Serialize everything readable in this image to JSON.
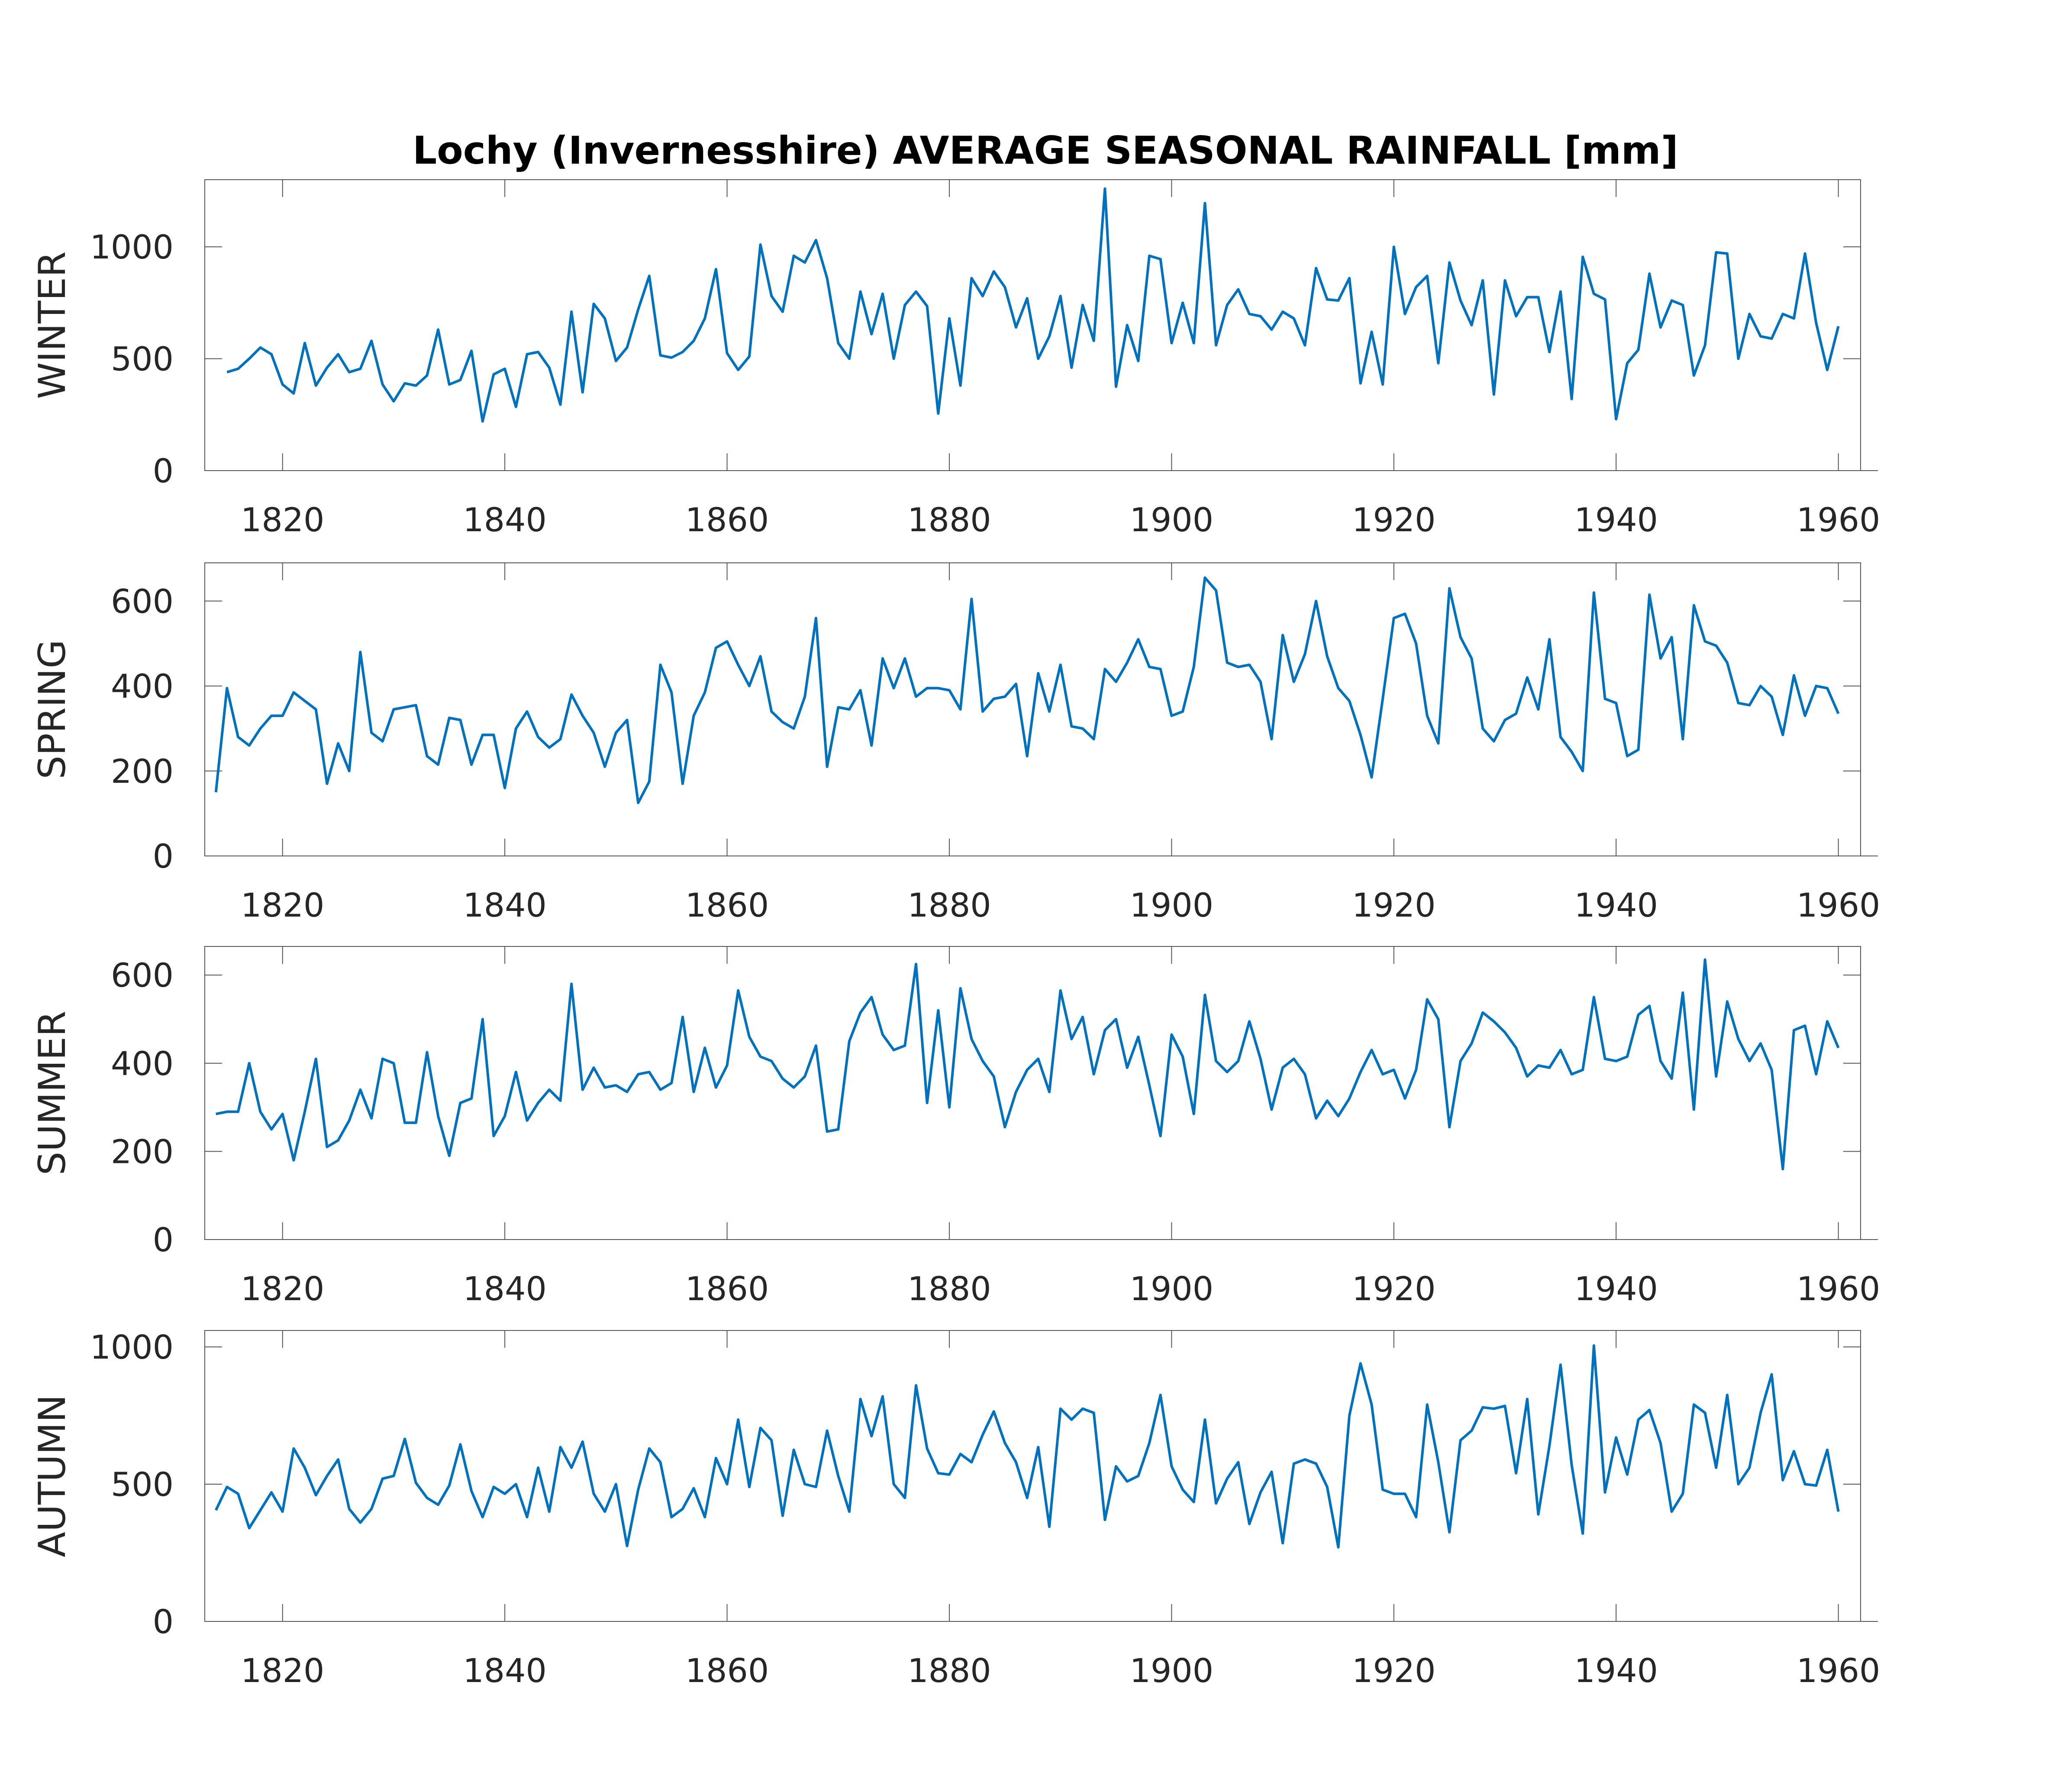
{
  "title": "Lochy (Invernesshire) AVERAGE SEASONAL RAINFALL [mm]",
  "colors": {
    "line": "#0072BD",
    "axis": "#262626",
    "frame": "#555555"
  },
  "chart_data": [
    {
      "type": "line",
      "ylabel": "WINTER",
      "xlim": [
        1813,
        1962
      ],
      "ylim": [
        0,
        1300
      ],
      "xticks": [
        1820,
        1840,
        1860,
        1880,
        1900,
        1920,
        1940,
        1960
      ],
      "yticks": [
        0,
        500,
        1000
      ],
      "grid": false,
      "x": [
        1815,
        1816,
        1817,
        1818,
        1819,
        1820,
        1821,
        1822,
        1823,
        1824,
        1825,
        1826,
        1827,
        1828,
        1829,
        1830,
        1831,
        1832,
        1833,
        1834,
        1835,
        1836,
        1837,
        1838,
        1839,
        1840,
        1841,
        1842,
        1843,
        1844,
        1845,
        1846,
        1847,
        1848,
        1849,
        1850,
        1851,
        1852,
        1853,
        1854,
        1855,
        1856,
        1857,
        1858,
        1859,
        1860,
        1861,
        1862,
        1863,
        1864,
        1865,
        1866,
        1867,
        1868,
        1869,
        1870,
        1871,
        1872,
        1873,
        1874,
        1875,
        1876,
        1877,
        1878,
        1879,
        1880,
        1881,
        1882,
        1883,
        1884,
        1885,
        1886,
        1887,
        1888,
        1889,
        1890,
        1891,
        1892,
        1893,
        1894,
        1895,
        1896,
        1897,
        1898,
        1899,
        1900,
        1901,
        1902,
        1903,
        1904,
        1905,
        1906,
        1907,
        1908,
        1909,
        1910,
        1911,
        1912,
        1913,
        1914,
        1915,
        1916,
        1917,
        1918,
        1919,
        1920,
        1921,
        1922,
        1923,
        1924,
        1925,
        1926,
        1927,
        1928,
        1929,
        1930,
        1931,
        1932,
        1933,
        1934,
        1935,
        1936,
        1937,
        1938,
        1939,
        1940,
        1941,
        1942,
        1943,
        1944,
        1945,
        1946,
        1947,
        1948,
        1949,
        1950,
        1951,
        1952,
        1953,
        1954,
        1955,
        1956,
        1957,
        1958,
        1959,
        1960
      ],
      "values": [
        440,
        455,
        500,
        550,
        520,
        385,
        345,
        570,
        380,
        460,
        520,
        440,
        455,
        580,
        385,
        310,
        390,
        380,
        425,
        630,
        385,
        405,
        535,
        220,
        430,
        455,
        285,
        520,
        530,
        460,
        295,
        710,
        350,
        745,
        680,
        490,
        550,
        720,
        870,
        515,
        505,
        530,
        580,
        680,
        900,
        525,
        450,
        510,
        1010,
        780,
        710,
        960,
        930,
        1030,
        860,
        570,
        500,
        800,
        610,
        790,
        500,
        740,
        800,
        735,
        255,
        680,
        380,
        860,
        780,
        890,
        820,
        640,
        770,
        500,
        600,
        780,
        460,
        740,
        580,
        1260,
        375,
        650,
        490,
        960,
        945,
        570,
        750,
        570,
        1195,
        560,
        740,
        810,
        700,
        690,
        630,
        710,
        680,
        560,
        905,
        765,
        760,
        860,
        390,
        620,
        385,
        1000,
        700,
        820,
        870,
        480,
        930,
        760,
        650,
        850,
        340,
        850,
        690,
        775,
        775,
        530,
        800,
        320,
        955,
        790,
        765,
        230,
        480,
        540,
        880,
        640,
        760,
        740,
        425,
        560,
        975,
        970,
        500,
        700,
        600,
        590,
        700,
        680,
        970,
        660,
        450,
        645
      ]
    },
    {
      "type": "line",
      "ylabel": "SPRING",
      "xlim": [
        1813,
        1962
      ],
      "ylim": [
        0,
        690
      ],
      "xticks": [
        1820,
        1840,
        1860,
        1880,
        1900,
        1920,
        1940,
        1960
      ],
      "yticks": [
        0,
        200,
        400,
        600
      ],
      "grid": false,
      "x": [
        1814,
        1815,
        1816,
        1817,
        1818,
        1819,
        1820,
        1821,
        1822,
        1823,
        1824,
        1825,
        1826,
        1827,
        1828,
        1829,
        1830,
        1831,
        1832,
        1833,
        1834,
        1835,
        1836,
        1837,
        1838,
        1839,
        1840,
        1841,
        1842,
        1843,
        1844,
        1845,
        1846,
        1847,
        1848,
        1849,
        1850,
        1851,
        1852,
        1853,
        1854,
        1855,
        1856,
        1857,
        1858,
        1859,
        1860,
        1861,
        1862,
        1863,
        1864,
        1865,
        1866,
        1867,
        1868,
        1869,
        1870,
        1871,
        1872,
        1873,
        1874,
        1875,
        1876,
        1877,
        1878,
        1879,
        1880,
        1881,
        1882,
        1883,
        1884,
        1885,
        1886,
        1887,
        1888,
        1889,
        1890,
        1891,
        1892,
        1893,
        1894,
        1895,
        1896,
        1897,
        1898,
        1899,
        1900,
        1901,
        1902,
        1903,
        1904,
        1905,
        1906,
        1907,
        1908,
        1909,
        1910,
        1911,
        1912,
        1913,
        1914,
        1915,
        1916,
        1917,
        1918,
        1919,
        1920,
        1921,
        1922,
        1923,
        1924,
        1925,
        1926,
        1927,
        1928,
        1929,
        1930,
        1931,
        1932,
        1933,
        1934,
        1935,
        1936,
        1937,
        1938,
        1939,
        1940,
        1941,
        1942,
        1943,
        1944,
        1945,
        1946,
        1947,
        1948,
        1949,
        1950,
        1951,
        1952,
        1953,
        1954,
        1955,
        1956,
        1957,
        1958,
        1959,
        1960
      ],
      "values": [
        150,
        395,
        280,
        260,
        300,
        330,
        330,
        385,
        365,
        345,
        170,
        265,
        200,
        480,
        290,
        270,
        345,
        350,
        355,
        235,
        215,
        325,
        320,
        215,
        285,
        285,
        160,
        300,
        340,
        280,
        255,
        275,
        380,
        330,
        290,
        210,
        290,
        320,
        125,
        175,
        450,
        385,
        170,
        330,
        385,
        490,
        505,
        450,
        400,
        470,
        340,
        315,
        300,
        375,
        560,
        210,
        350,
        345,
        390,
        260,
        465,
        395,
        465,
        375,
        395,
        395,
        390,
        345,
        605,
        340,
        370,
        375,
        405,
        235,
        430,
        340,
        450,
        305,
        300,
        275,
        440,
        410,
        455,
        510,
        445,
        440,
        330,
        340,
        445,
        655,
        625,
        455,
        445,
        450,
        410,
        275,
        520,
        410,
        475,
        600,
        470,
        395,
        365,
        285,
        185,
        370,
        560,
        570,
        500,
        330,
        265,
        630,
        515,
        465,
        300,
        270,
        320,
        335,
        420,
        345,
        510,
        280,
        245,
        200,
        620,
        370,
        360,
        235,
        250,
        615,
        465,
        515,
        275,
        590,
        505,
        495,
        455,
        360,
        355,
        400,
        375,
        285,
        425,
        330,
        400,
        395,
        335
      ]
    },
    {
      "type": "line",
      "ylabel": "SUMMER",
      "xlim": [
        1813,
        1962
      ],
      "ylim": [
        0,
        665
      ],
      "xticks": [
        1820,
        1840,
        1860,
        1880,
        1900,
        1920,
        1940,
        1960
      ],
      "yticks": [
        0,
        200,
        400,
        600
      ],
      "grid": false,
      "x": [
        1814,
        1815,
        1816,
        1817,
        1818,
        1819,
        1820,
        1821,
        1822,
        1823,
        1824,
        1825,
        1826,
        1827,
        1828,
        1829,
        1830,
        1831,
        1832,
        1833,
        1834,
        1835,
        1836,
        1837,
        1838,
        1839,
        1840,
        1841,
        1842,
        1843,
        1844,
        1845,
        1846,
        1847,
        1848,
        1849,
        1850,
        1851,
        1852,
        1853,
        1854,
        1855,
        1856,
        1857,
        1858,
        1859,
        1860,
        1861,
        1862,
        1863,
        1864,
        1865,
        1866,
        1867,
        1868,
        1869,
        1870,
        1871,
        1872,
        1873,
        1874,
        1875,
        1876,
        1877,
        1878,
        1879,
        1880,
        1881,
        1882,
        1883,
        1884,
        1885,
        1886,
        1887,
        1888,
        1889,
        1890,
        1891,
        1892,
        1893,
        1894,
        1895,
        1896,
        1897,
        1898,
        1899,
        1900,
        1901,
        1902,
        1903,
        1904,
        1905,
        1906,
        1907,
        1908,
        1909,
        1910,
        1911,
        1912,
        1913,
        1914,
        1915,
        1916,
        1917,
        1918,
        1919,
        1920,
        1921,
        1922,
        1923,
        1924,
        1925,
        1926,
        1927,
        1928,
        1929,
        1930,
        1931,
        1932,
        1933,
        1934,
        1935,
        1936,
        1937,
        1938,
        1939,
        1940,
        1941,
        1942,
        1943,
        1944,
        1945,
        1946,
        1947,
        1948,
        1949,
        1950,
        1951,
        1952,
        1953,
        1954,
        1955,
        1956,
        1957,
        1958,
        1959,
        1960
      ],
      "values": [
        285,
        290,
        290,
        400,
        290,
        250,
        285,
        180,
        290,
        410,
        210,
        225,
        270,
        340,
        275,
        410,
        400,
        265,
        265,
        425,
        280,
        190,
        310,
        320,
        500,
        235,
        280,
        380,
        270,
        310,
        340,
        315,
        580,
        340,
        390,
        345,
        350,
        335,
        375,
        380,
        340,
        355,
        505,
        335,
        435,
        345,
        395,
        565,
        460,
        415,
        405,
        365,
        345,
        370,
        440,
        245,
        250,
        450,
        515,
        550,
        465,
        430,
        440,
        625,
        310,
        520,
        300,
        570,
        455,
        405,
        370,
        255,
        335,
        385,
        410,
        335,
        565,
        455,
        505,
        375,
        475,
        500,
        390,
        460,
        350,
        235,
        465,
        415,
        285,
        555,
        405,
        380,
        405,
        495,
        410,
        295,
        390,
        410,
        375,
        275,
        315,
        280,
        320,
        380,
        430,
        375,
        385,
        320,
        385,
        545,
        500,
        255,
        405,
        445,
        515,
        495,
        470,
        435,
        370,
        395,
        390,
        430,
        375,
        385,
        550,
        410,
        405,
        415,
        510,
        530,
        405,
        365,
        560,
        295,
        635,
        370,
        540,
        455,
        405,
        445,
        385,
        160,
        475,
        485,
        375,
        495,
        435
      ]
    },
    {
      "type": "line",
      "ylabel": "AUTUMN",
      "xlim": [
        1813,
        1962
      ],
      "ylim": [
        0,
        1060
      ],
      "xticks": [
        1820,
        1840,
        1860,
        1880,
        1900,
        1920,
        1940,
        1960
      ],
      "yticks": [
        0,
        500,
        1000
      ],
      "grid": false,
      "x": [
        1814,
        1815,
        1816,
        1817,
        1818,
        1819,
        1820,
        1821,
        1822,
        1823,
        1824,
        1825,
        1826,
        1827,
        1828,
        1829,
        1830,
        1831,
        1832,
        1833,
        1834,
        1835,
        1836,
        1837,
        1838,
        1839,
        1840,
        1841,
        1842,
        1843,
        1844,
        1845,
        1846,
        1847,
        1848,
        1849,
        1850,
        1851,
        1852,
        1853,
        1854,
        1855,
        1856,
        1857,
        1858,
        1859,
        1860,
        1861,
        1862,
        1863,
        1864,
        1865,
        1866,
        1867,
        1868,
        1869,
        1870,
        1871,
        1872,
        1873,
        1874,
        1875,
        1876,
        1877,
        1878,
        1879,
        1880,
        1881,
        1882,
        1883,
        1884,
        1885,
        1886,
        1887,
        1888,
        1889,
        1890,
        1891,
        1892,
        1893,
        1894,
        1895,
        1896,
        1897,
        1898,
        1899,
        1900,
        1901,
        1902,
        1903,
        1904,
        1905,
        1906,
        1907,
        1908,
        1909,
        1910,
        1911,
        1912,
        1913,
        1914,
        1915,
        1916,
        1917,
        1918,
        1919,
        1920,
        1921,
        1922,
        1923,
        1924,
        1925,
        1926,
        1927,
        1928,
        1929,
        1930,
        1931,
        1932,
        1933,
        1934,
        1935,
        1936,
        1937,
        1938,
        1939,
        1940,
        1941,
        1942,
        1943,
        1944,
        1945,
        1946,
        1947,
        1948,
        1949,
        1950,
        1951,
        1952,
        1953,
        1954,
        1955,
        1956,
        1957,
        1958,
        1959,
        1960
      ],
      "values": [
        405,
        490,
        465,
        340,
        405,
        470,
        400,
        630,
        560,
        460,
        530,
        590,
        410,
        360,
        410,
        520,
        530,
        665,
        505,
        450,
        425,
        495,
        645,
        475,
        380,
        490,
        465,
        500,
        380,
        560,
        400,
        635,
        560,
        655,
        465,
        400,
        500,
        275,
        480,
        630,
        580,
        380,
        410,
        485,
        380,
        595,
        500,
        735,
        490,
        705,
        660,
        385,
        625,
        500,
        490,
        695,
        530,
        400,
        810,
        675,
        820,
        500,
        450,
        860,
        630,
        540,
        535,
        610,
        580,
        680,
        765,
        650,
        580,
        450,
        635,
        345,
        775,
        735,
        775,
        760,
        370,
        565,
        510,
        530,
        650,
        825,
        565,
        480,
        435,
        735,
        430,
        520,
        580,
        355,
        470,
        545,
        285,
        575,
        590,
        575,
        490,
        270,
        750,
        940,
        790,
        480,
        465,
        465,
        380,
        790,
        580,
        325,
        660,
        695,
        780,
        775,
        785,
        540,
        810,
        390,
        640,
        935,
        570,
        320,
        1005,
        470,
        670,
        535,
        735,
        770,
        650,
        400,
        465,
        790,
        760,
        560,
        825,
        500,
        560,
        760,
        900,
        515,
        620,
        500,
        495,
        625,
        400
      ]
    }
  ]
}
